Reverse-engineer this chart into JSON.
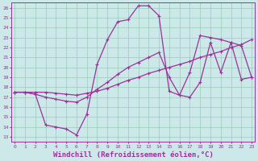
{
  "background_color": "#cce8e8",
  "grid_color": "#99ccbb",
  "line_color": "#993399",
  "xlabel": "Windchill (Refroidissement éolien,°C)",
  "xlabel_fontsize": 6.5,
  "ytick_values": [
    13,
    14,
    15,
    16,
    17,
    18,
    19,
    20,
    21,
    22,
    23,
    24,
    25,
    26
  ],
  "xtick_values": [
    0,
    1,
    2,
    3,
    4,
    5,
    6,
    7,
    8,
    9,
    10,
    11,
    12,
    13,
    14,
    15,
    16,
    17,
    18,
    19,
    20,
    21,
    22,
    23
  ],
  "xlim": [
    -0.3,
    23.3
  ],
  "ylim": [
    12.5,
    26.5
  ],
  "line1_x": [
    0,
    1,
    2,
    3,
    4,
    5,
    6,
    7,
    8,
    9,
    10,
    11,
    12,
    13,
    14,
    15,
    16,
    17,
    18,
    19,
    20,
    21,
    22,
    23
  ],
  "line1_y": [
    17.5,
    17.5,
    17.3,
    14.2,
    14.0,
    13.8,
    13.2,
    15.3,
    20.3,
    22.8,
    24.6,
    24.8,
    26.2,
    26.2,
    25.2,
    17.6,
    17.2,
    17.0,
    18.5,
    22.5,
    19.5,
    22.5,
    18.8,
    19.0
  ],
  "line2_x": [
    0,
    1,
    2,
    3,
    4,
    5,
    6,
    7,
    8,
    9,
    10,
    11,
    12,
    13,
    14,
    15,
    16,
    17,
    18,
    19,
    20,
    21,
    22,
    23
  ],
  "line2_y": [
    17.5,
    17.5,
    17.5,
    17.5,
    17.4,
    17.3,
    17.2,
    17.4,
    17.6,
    17.9,
    18.3,
    18.7,
    19.0,
    19.4,
    19.7,
    20.0,
    20.3,
    20.6,
    21.0,
    21.3,
    21.6,
    22.0,
    22.3,
    22.8
  ],
  "line3_x": [
    0,
    1,
    2,
    3,
    4,
    5,
    6,
    7,
    8,
    9,
    10,
    11,
    12,
    13,
    14,
    15,
    16,
    17,
    18,
    19,
    20,
    21,
    22,
    23
  ],
  "line3_y": [
    17.5,
    17.5,
    17.3,
    17.0,
    16.8,
    16.6,
    16.5,
    17.0,
    17.8,
    18.5,
    19.3,
    20.0,
    20.5,
    21.0,
    21.5,
    19.0,
    17.2,
    19.5,
    23.2,
    23.0,
    22.8,
    22.5,
    22.2,
    19.0
  ]
}
